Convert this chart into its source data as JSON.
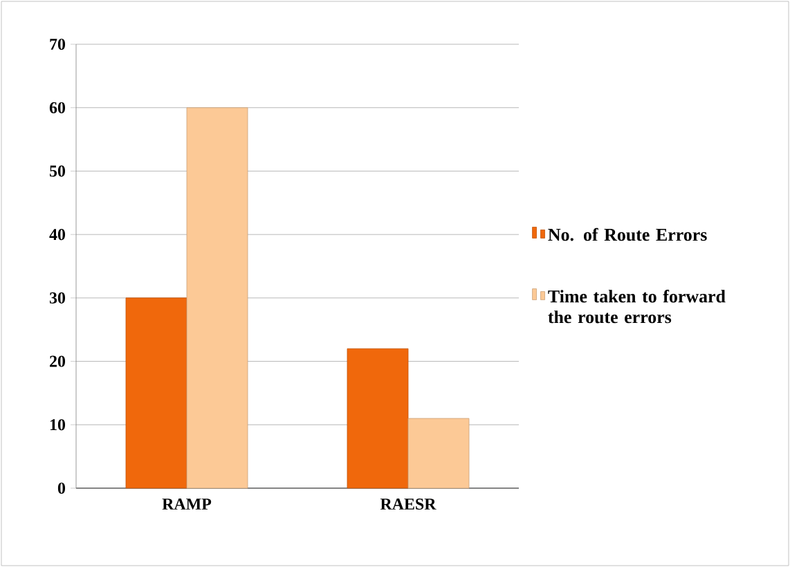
{
  "chart_data": {
    "type": "bar",
    "categories": [
      "RAMP",
      "RAESR"
    ],
    "series": [
      {
        "name": "No. of Route Errors",
        "color": "#f0680c",
        "values": [
          30,
          22
        ]
      },
      {
        "name": "Time taken to forward the route errors",
        "color": "#fcc996",
        "values": [
          60,
          11
        ]
      }
    ],
    "ylim": [
      0,
      70
    ],
    "yticks": [
      0,
      10,
      20,
      30,
      40,
      50,
      60,
      70
    ],
    "grid": "y",
    "legend": "right"
  }
}
